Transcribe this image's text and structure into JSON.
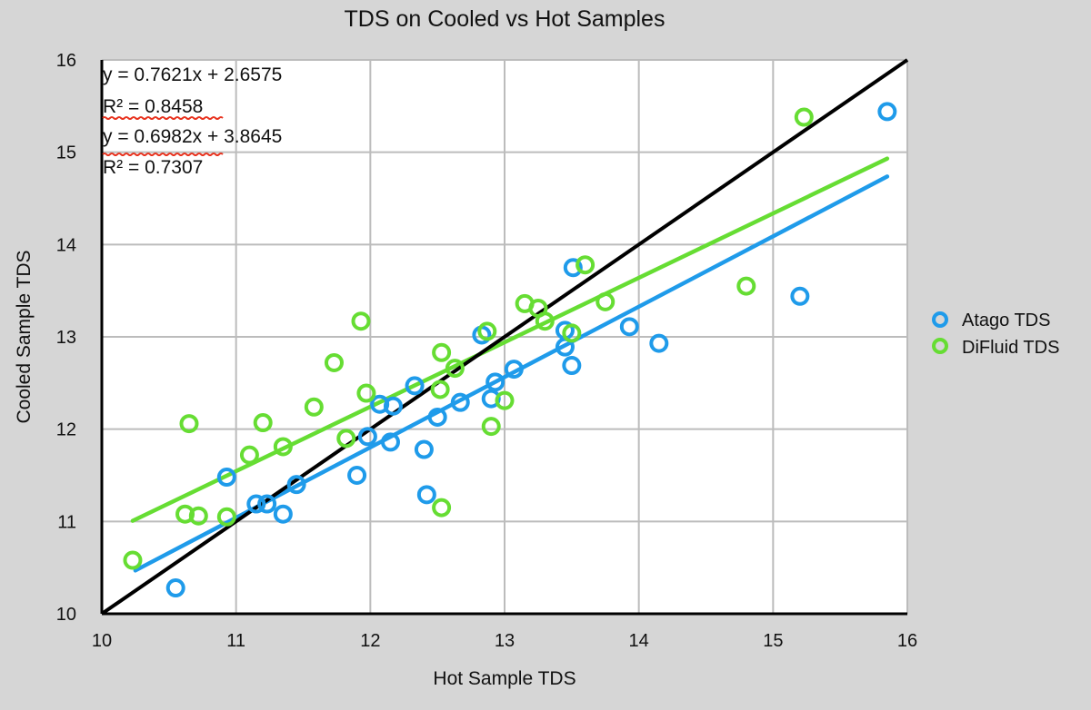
{
  "chart_data": {
    "type": "scatter",
    "title": "TDS on Cooled vs Hot Samples",
    "xlabel": "Hot Sample TDS",
    "ylabel": "Cooled Sample TDS",
    "xlim": [
      10,
      16
    ],
    "ylim": [
      10,
      16
    ],
    "xticks": [
      "10",
      "11",
      "12",
      "13",
      "14",
      "15",
      "16"
    ],
    "yticks": [
      "10",
      "11",
      "12",
      "13",
      "14",
      "15",
      "16"
    ],
    "grid": true,
    "legend_position": "right",
    "reference_line": {
      "name": "y = x",
      "color": "#000000",
      "from": [
        10,
        10
      ],
      "to": [
        16,
        16
      ]
    },
    "annotations": [
      "y = 0.7621x + 2.6575",
      "R² = 0.8458",
      "y = 0.6982x + 3.8645",
      "R² = 0.7307"
    ],
    "series": [
      {
        "name": "Atago TDS",
        "color": "#1f9bea",
        "trendline": {
          "slope": 0.7621,
          "intercept": 2.6575,
          "x_range": [
            10.25,
            15.85
          ]
        },
        "points": [
          [
            10.55,
            10.28
          ],
          [
            10.93,
            11.48
          ],
          [
            11.15,
            11.19
          ],
          [
            11.23,
            11.19
          ],
          [
            11.35,
            11.08
          ],
          [
            11.45,
            11.4
          ],
          [
            11.9,
            11.5
          ],
          [
            11.98,
            11.92
          ],
          [
            12.07,
            12.27
          ],
          [
            12.17,
            12.25
          ],
          [
            12.15,
            11.86
          ],
          [
            12.33,
            12.47
          ],
          [
            12.4,
            11.78
          ],
          [
            12.42,
            11.29
          ],
          [
            12.5,
            12.13
          ],
          [
            12.67,
            12.29
          ],
          [
            12.83,
            13.02
          ],
          [
            12.9,
            12.33
          ],
          [
            12.93,
            12.51
          ],
          [
            13.07,
            12.65
          ],
          [
            13.45,
            13.07
          ],
          [
            13.45,
            12.89
          ],
          [
            13.5,
            12.69
          ],
          [
            13.51,
            13.75
          ],
          [
            13.93,
            13.11
          ],
          [
            14.15,
            12.93
          ],
          [
            15.2,
            13.44
          ],
          [
            15.85,
            15.44
          ]
        ]
      },
      {
        "name": "DiFluid TDS",
        "color": "#66dd33",
        "trendline": {
          "slope": 0.6982,
          "intercept": 3.8645,
          "x_range": [
            10.23,
            15.85
          ]
        },
        "points": [
          [
            10.23,
            10.58
          ],
          [
            10.62,
            11.08
          ],
          [
            10.65,
            12.06
          ],
          [
            10.72,
            11.06
          ],
          [
            10.93,
            11.05
          ],
          [
            11.1,
            11.72
          ],
          [
            11.2,
            12.07
          ],
          [
            11.35,
            11.81
          ],
          [
            11.58,
            12.24
          ],
          [
            11.73,
            12.72
          ],
          [
            11.82,
            11.9
          ],
          [
            11.93,
            13.17
          ],
          [
            11.97,
            12.39
          ],
          [
            12.53,
            12.83
          ],
          [
            12.52,
            12.43
          ],
          [
            12.53,
            11.15
          ],
          [
            12.63,
            12.66
          ],
          [
            12.87,
            13.06
          ],
          [
            12.9,
            12.03
          ],
          [
            13.0,
            12.31
          ],
          [
            13.15,
            13.36
          ],
          [
            13.25,
            13.31
          ],
          [
            13.3,
            13.17
          ],
          [
            13.5,
            13.04
          ],
          [
            13.6,
            13.78
          ],
          [
            13.75,
            13.38
          ],
          [
            14.8,
            13.55
          ],
          [
            15.23,
            15.38
          ]
        ]
      }
    ]
  }
}
